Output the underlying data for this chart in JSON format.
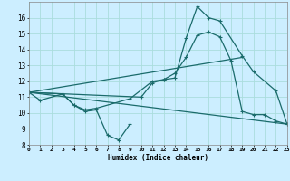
{
  "bg_color": "#cceeff",
  "grid_color": "#aadddd",
  "line_color": "#1a6b6b",
  "xlabel": "Humidex (Indice chaleur)",
  "xlim": [
    0,
    23
  ],
  "ylim": [
    8,
    17
  ],
  "curve1_x": [
    0,
    1,
    3,
    4,
    5,
    6,
    9,
    11,
    12,
    13,
    14,
    15,
    16,
    17,
    19,
    20,
    22,
    23
  ],
  "curve1_y": [
    11.3,
    10.8,
    11.2,
    10.5,
    10.2,
    10.3,
    10.9,
    12.0,
    12.1,
    12.2,
    14.7,
    16.7,
    16.0,
    15.8,
    13.6,
    12.6,
    11.4,
    9.3
  ],
  "curve2_x": [
    0,
    3,
    4,
    5,
    6,
    7,
    8,
    9
  ],
  "curve2_y": [
    11.3,
    11.2,
    10.5,
    10.1,
    10.2,
    8.6,
    8.3,
    9.3
  ],
  "line3_x": [
    0,
    23
  ],
  "line3_y": [
    11.3,
    9.3
  ],
  "curve4_x": [
    0,
    10,
    11,
    12,
    13,
    14,
    15,
    16,
    17,
    18,
    19,
    20,
    21,
    22,
    23
  ],
  "curve4_y": [
    11.3,
    11.0,
    11.9,
    12.1,
    12.5,
    13.5,
    14.9,
    15.1,
    14.8,
    13.3,
    10.1,
    9.9,
    9.9,
    9.5,
    9.3
  ],
  "line5_x": [
    0,
    19
  ],
  "line5_y": [
    11.3,
    13.5
  ],
  "xtick_labels": [
    "0",
    "1",
    "2",
    "3",
    "4",
    "5",
    "6",
    "7",
    "8",
    "9",
    "10",
    "11",
    "12",
    "13",
    "14",
    "15",
    "16",
    "17",
    "18",
    "19",
    "20",
    "21",
    "22",
    "23"
  ],
  "ytick_labels": [
    "8",
    "9",
    "10",
    "11",
    "12",
    "13",
    "14",
    "15",
    "16"
  ]
}
